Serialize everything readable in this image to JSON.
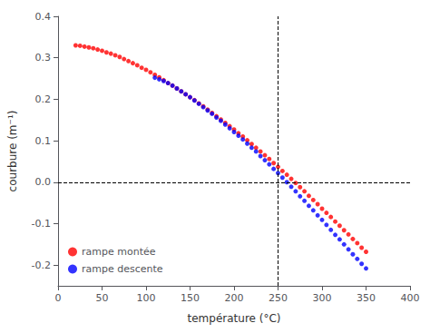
{
  "chart_data": {
    "type": "scatter",
    "xlabel": "température (°C)",
    "ylabel": "courbure (m⁻¹)",
    "xlim": [
      0,
      400
    ],
    "ylim": [
      -0.25,
      0.4
    ],
    "xticks": [
      0,
      50,
      100,
      150,
      200,
      250,
      300,
      350,
      400
    ],
    "yticks": [
      -0.2,
      -0.1,
      {
        "value": 0.0,
        "label": "0.0"
      },
      0.1,
      0.2,
      0.3,
      0.4
    ],
    "hline": 0.0,
    "vline": 250,
    "grid": false,
    "legend": "lower left",
    "marker": "circle",
    "series": [
      {
        "name": "rampe montée",
        "color": "red",
        "x": [
          20,
          25,
          30,
          35,
          40,
          45,
          50,
          55,
          60,
          65,
          70,
          75,
          80,
          85,
          90,
          95,
          100,
          105,
          110,
          115,
          120,
          125,
          130,
          135,
          140,
          145,
          150,
          155,
          160,
          165,
          170,
          175,
          180,
          185,
          190,
          195,
          200,
          205,
          210,
          215,
          220,
          225,
          230,
          235,
          240,
          245,
          250,
          255,
          260,
          265,
          270,
          275,
          280,
          285,
          290,
          295,
          300,
          305,
          310,
          315,
          320,
          325,
          330,
          335,
          340,
          345,
          350
        ],
        "values": [
          0.33,
          0.329,
          0.327,
          0.325,
          0.323,
          0.32,
          0.317,
          0.313,
          0.31,
          0.306,
          0.302,
          0.297,
          0.292,
          0.287,
          0.282,
          0.276,
          0.271,
          0.265,
          0.259,
          0.253,
          0.246,
          0.239,
          0.233,
          0.226,
          0.219,
          0.212,
          0.205,
          0.198,
          0.19,
          0.183,
          0.175,
          0.167,
          0.159,
          0.151,
          0.143,
          0.135,
          0.127,
          0.118,
          0.11,
          0.101,
          0.092,
          0.083,
          0.074,
          0.065,
          0.056,
          0.046,
          0.037,
          0.027,
          0.018,
          0.008,
          -0.002,
          -0.012,
          -0.022,
          -0.033,
          -0.043,
          -0.053,
          -0.064,
          -0.074,
          -0.084,
          -0.095,
          -0.105,
          -0.116,
          -0.126,
          -0.137,
          -0.147,
          -0.158,
          -0.168
        ]
      },
      {
        "name": "rampe descente",
        "color": "blue",
        "x": [
          110,
          115,
          120,
          125,
          130,
          135,
          140,
          145,
          150,
          155,
          160,
          165,
          170,
          175,
          180,
          185,
          190,
          195,
          200,
          205,
          210,
          215,
          220,
          225,
          230,
          235,
          240,
          245,
          250,
          255,
          260,
          265,
          270,
          275,
          280,
          285,
          290,
          295,
          300,
          305,
          310,
          315,
          320,
          325,
          330,
          335,
          340,
          345,
          350
        ],
        "values": [
          0.252,
          0.248,
          0.244,
          0.239,
          0.233,
          0.226,
          0.219,
          0.212,
          0.205,
          0.197,
          0.189,
          0.181,
          0.173,
          0.165,
          0.156,
          0.148,
          0.139,
          0.13,
          0.121,
          0.112,
          0.103,
          0.093,
          0.083,
          0.074,
          0.063,
          0.053,
          0.043,
          0.032,
          0.022,
          0.011,
          0.0,
          -0.011,
          -0.022,
          -0.034,
          -0.045,
          -0.057,
          -0.068,
          -0.08,
          -0.091,
          -0.103,
          -0.115,
          -0.127,
          -0.138,
          -0.15,
          -0.162,
          -0.174,
          -0.185,
          -0.197,
          -0.208
        ]
      }
    ]
  }
}
